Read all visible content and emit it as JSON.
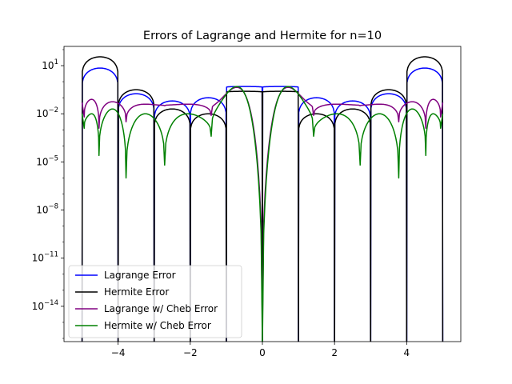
{
  "chart_data": {
    "type": "line",
    "title": "Errors of Lagrange and Hermite for n=10",
    "xlabel": "",
    "ylabel": "",
    "xlim": [
      -5.5,
      5.5
    ],
    "y_scale": "log",
    "ylim_log10": [
      -16.2,
      2.2
    ],
    "grid": false,
    "legend_position": "lower-left",
    "x_ticks": [
      {
        "value": -4,
        "label": "−4"
      },
      {
        "value": -2,
        "label": "−2"
      },
      {
        "value": 0,
        "label": "0"
      },
      {
        "value": 2,
        "label": "2"
      },
      {
        "value": 4,
        "label": "4"
      }
    ],
    "y_ticks": [
      {
        "value_log10": 1,
        "base": "10",
        "exp": "1"
      },
      {
        "value_log10": -2,
        "base": "10",
        "exp": "−2"
      },
      {
        "value_log10": -5,
        "base": "10",
        "exp": "−5"
      },
      {
        "value_log10": -8,
        "base": "10",
        "exp": "−8"
      },
      {
        "value_log10": -11,
        "base": "10",
        "exp": "−11"
      },
      {
        "value_log10": -14,
        "base": "10",
        "exp": "−14"
      }
    ],
    "nodes_uniform": [
      -5,
      -4,
      -3,
      -2,
      -1,
      0,
      1,
      2,
      3,
      4,
      5
    ],
    "nodes_chebyshev": [
      -4.94,
      -4.53,
      -3.78,
      -2.71,
      -1.42,
      0,
      1.42,
      2.71,
      3.78,
      4.53,
      4.94
    ],
    "series": [
      {
        "name": "Lagrange Error",
        "color": "#0000ff",
        "node_set": "uniform",
        "segment_peaks_log10": [
          0.85,
          -0.75,
          -1.2,
          -1.0,
          -0.3,
          -0.3,
          -1.0,
          -1.2,
          -0.75,
          0.85
        ]
      },
      {
        "name": "Hermite Error",
        "color": "#000000",
        "node_set": "uniform",
        "segment_peaks_log10": [
          1.55,
          -0.5,
          -1.7,
          -2.0,
          -0.6,
          -0.6,
          -2.0,
          -1.7,
          -0.5,
          1.55
        ]
      },
      {
        "name": "Lagrange w/ Cheb Error",
        "color": "#800080",
        "node_set": "chebyshev",
        "segment_peaks_log10": [
          -1.1,
          -1.25,
          -1.4,
          -1.4,
          -0.35,
          -0.35,
          -1.4,
          -1.4,
          -1.25,
          -1.1
        ],
        "dip_floors_log10": [
          -2.2,
          -2.9,
          -2.5,
          -1.5,
          -2.1,
          -15.4,
          -2.1,
          -1.5,
          -2.5,
          -2.9,
          -2.2
        ]
      },
      {
        "name": "Hermite w/ Cheb Error",
        "color": "#008000",
        "node_set": "chebyshev",
        "segment_peaks_log10": [
          -2.0,
          -1.7,
          -2.0,
          -2.0,
          -0.3,
          -0.3,
          -2.0,
          -2.0,
          -1.7,
          -2.0
        ],
        "dip_floors_log10": [
          -2.9,
          -4.6,
          -6.0,
          -5.2,
          -3.4,
          -16.5,
          -3.4,
          -5.2,
          -6.0,
          -4.6,
          -2.9
        ]
      }
    ]
  }
}
